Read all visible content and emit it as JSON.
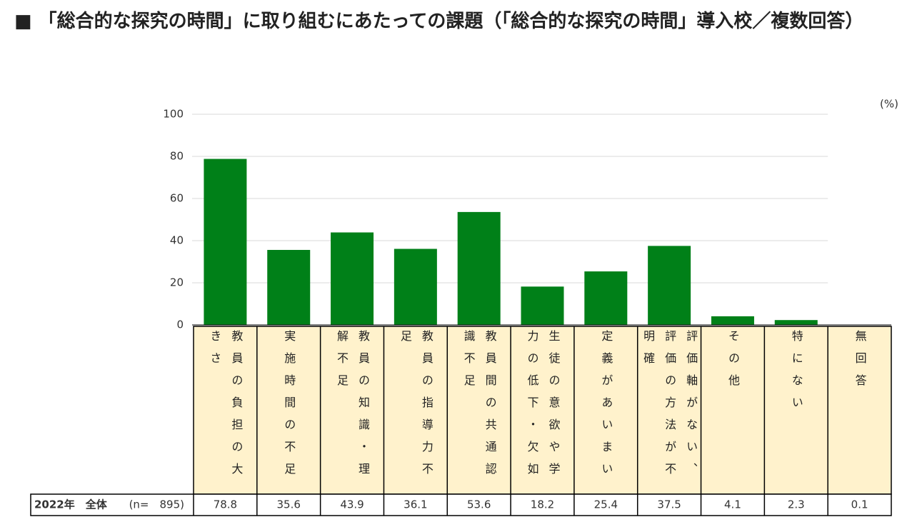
{
  "title": "■ 「総合的な探究の時間」に取り組むにあたっての課題（「総合的な探究の時間」導入校／複数回答）",
  "chart_data": {
    "type": "bar",
    "unit_label": "(%)",
    "categories": [
      "教員の負担の大きさ",
      "実施時間の不足",
      "教員の知識・理解不足",
      "教員の指導力不足",
      "教員間の共通認識不足",
      "生徒の意欲や学力の低下・欠如",
      "定義があいまい",
      "評価軸がない、評価の方法が不明確",
      "その他",
      "特にない",
      "無回答"
    ],
    "values": [
      78.8,
      35.6,
      43.9,
      36.1,
      53.6,
      18.2,
      25.4,
      37.5,
      4.1,
      2.3,
      0.1
    ],
    "color": "#008018",
    "ylim": [
      0,
      100
    ],
    "yticks": [
      0,
      20,
      40,
      60,
      80,
      100
    ],
    "grid": true,
    "row_label": "2022年　全体",
    "n_label": "(n=　895)"
  }
}
